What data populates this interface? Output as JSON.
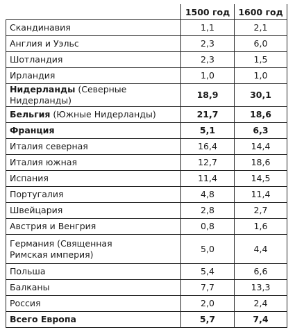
{
  "header": {
    "country": "",
    "year_1500": "1500 год",
    "year_1600": "1600 год"
  },
  "rows": [
    {
      "name": "Скандинавия",
      "note": "",
      "v1500": "1,1",
      "v1600": "2,1"
    },
    {
      "name": "Англия и Уэльс",
      "note": "",
      "v1500": "2,3",
      "v1600": "6,0"
    },
    {
      "name": "Шотландия",
      "note": "",
      "v1500": "2,3",
      "v1600": "1,5"
    },
    {
      "name": "Ирландия",
      "note": "",
      "v1500": "1,0",
      "v1600": "1,0"
    },
    {
      "name": "Нидерланды",
      "note": " (Северные Нидерланды)",
      "v1500": "18,9",
      "v1600": "30,1"
    },
    {
      "name": "Бельгия",
      "note": " (Южные Нидерланды)",
      "v1500": "21,7",
      "v1600": "18,6"
    },
    {
      "name": "Франция",
      "note": "",
      "v1500": "5,1",
      "v1600": "6,3"
    },
    {
      "name": "Италия северная",
      "note": "",
      "v1500": "16,4",
      "v1600": "14,4"
    },
    {
      "name": "Италия южная",
      "note": "",
      "v1500": "12,7",
      "v1600": "18,6"
    },
    {
      "name": "Испания",
      "note": "",
      "v1500": "11,4",
      "v1600": "14,5"
    },
    {
      "name": "Португалия",
      "note": "",
      "v1500": "4,8",
      "v1600": "11,4"
    },
    {
      "name": "Швейцария",
      "note": "",
      "v1500": "2,8",
      "v1600": "2,7"
    },
    {
      "name": "Австрия и Венгрия",
      "note": "",
      "v1500": "0,8",
      "v1600": "1,6"
    },
    {
      "name": "Германия (Священная",
      "name2": "Римская империя)",
      "note": "",
      "v1500": "5,0",
      "v1600": "4,4"
    },
    {
      "name": "Польша",
      "note": "",
      "v1500": "5,4",
      "v1600": "6,6"
    },
    {
      "name": "Балканы",
      "note": "",
      "v1500": "7,7",
      "v1600": "13,3"
    },
    {
      "name": "Россия",
      "note": "",
      "v1500": "2,0",
      "v1600": "2,4"
    },
    {
      "name": "Всего Европа",
      "note": "",
      "v1500": "5,7",
      "v1600": "7,4"
    }
  ]
}
